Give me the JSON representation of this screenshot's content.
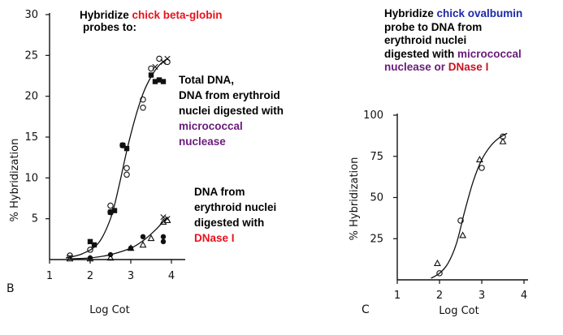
{
  "panels": [
    {
      "id": "B",
      "panel_label": "B",
      "annotations": {
        "title": {
          "line1_prefix": "Hybridize ",
          "line1_highlight": "chick beta-globin",
          "line2": "probes to:"
        },
        "total_dna": {
          "line1": "Total DNA,",
          "line2": "DNA from erythroid",
          "line3": "nuclei digested with",
          "line4": "micrococcal",
          "line5": "nuclease"
        },
        "dnase_dna": {
          "line1": "DNA from",
          "line2": "erythroid nuclei",
          "line3": "digested with",
          "line4": "DNase I"
        }
      }
    },
    {
      "id": "C",
      "panel_label": "C",
      "annotations": {
        "title": {
          "line1_prefix": "Hybridize ",
          "line1_highlight": "chick ovalbumin",
          "line2": "probe to DNA from",
          "line3": "erythroid nuclei",
          "line4_prefix": "digested with ",
          "line4_highlight": "micrococcal",
          "line5_prefix": "nuclease or ",
          "line5_highlight": "DNase I"
        }
      }
    }
  ],
  "colors": {
    "red_highlight": "#e8121c",
    "purple_highlight": "#6a1b7a",
    "blue_highlight": "#1e2aa8",
    "dark_red_highlight": "#c81020",
    "ink": "#111111"
  },
  "chart_data": [
    {
      "type": "scatter",
      "panel": "B",
      "xlabel": "Log Cot",
      "ylabel": "% Hybridization",
      "xlim": [
        1,
        4.2
      ],
      "ylim": [
        0,
        30
      ],
      "x_ticks": [
        1,
        2,
        3,
        4
      ],
      "x_tick_labels": [
        "1",
        "2",
        "3",
        "4"
      ],
      "y_ticks": [
        5,
        10,
        15,
        20,
        25,
        30
      ],
      "y_tick_labels": [
        "5",
        "10",
        "15",
        "20",
        "25",
        "30"
      ],
      "grid": false,
      "series": [
        {
          "marker": "filled-square",
          "points": [
            [
              2.0,
              2.2
            ],
            [
              2.1,
              1.8
            ],
            [
              2.5,
              5.8
            ],
            [
              2.6,
              6.0
            ],
            [
              2.8,
              14.0
            ],
            [
              2.9,
              13.6
            ],
            [
              3.5,
              22.6
            ],
            [
              3.6,
              21.8
            ],
            [
              3.7,
              22.0
            ],
            [
              3.8,
              21.8
            ]
          ]
        },
        {
          "marker": "open-circle",
          "points": [
            [
              1.5,
              0.5
            ],
            [
              2.0,
              1.2
            ],
            [
              2.5,
              5.8
            ],
            [
              2.5,
              6.6
            ],
            [
              2.8,
              14.0
            ],
            [
              2.9,
              11.2
            ],
            [
              2.9,
              10.4
            ],
            [
              3.3,
              19.6
            ],
            [
              3.3,
              18.6
            ],
            [
              3.5,
              23.4
            ],
            [
              3.7,
              24.6
            ],
            [
              3.9,
              24.2
            ]
          ]
        },
        {
          "marker": "open-cross",
          "points": [
            [
              1.5,
              0.3
            ],
            [
              3.6,
              23.6
            ],
            [
              3.8,
              24.2
            ],
            [
              3.9,
              24.6
            ]
          ]
        },
        {
          "marker": "filled-circle",
          "points": [
            [
              2.0,
              0.2
            ],
            [
              2.5,
              0.6
            ],
            [
              3.0,
              1.4
            ],
            [
              3.3,
              2.8
            ],
            [
              3.8,
              2.8
            ],
            [
              3.8,
              2.2
            ]
          ]
        },
        {
          "marker": "open-triangle",
          "points": [
            [
              1.5,
              0.1
            ],
            [
              2.0,
              0.1
            ],
            [
              2.5,
              0.2
            ],
            [
              3.0,
              1.4
            ],
            [
              3.3,
              1.8
            ],
            [
              3.5,
              2.6
            ],
            [
              3.8,
              4.6
            ],
            [
              3.9,
              4.8
            ]
          ]
        },
        {
          "marker": "open-cross",
          "points": [
            [
              3.8,
              5.2
            ],
            [
              3.9,
              5.0
            ]
          ]
        }
      ],
      "curves": [
        {
          "points": [
            [
              1.4,
              0.2
            ],
            [
              1.8,
              0.7
            ],
            [
              2.2,
              2.0
            ],
            [
              2.5,
              5.0
            ],
            [
              2.7,
              8.8
            ],
            [
              2.9,
              13.3
            ],
            [
              3.1,
              17.2
            ],
            [
              3.3,
              20.3
            ],
            [
              3.5,
              22.4
            ],
            [
              3.7,
              23.8
            ],
            [
              3.9,
              24.6
            ]
          ]
        },
        {
          "points": [
            [
              1.5,
              0.1
            ],
            [
              2.0,
              0.2
            ],
            [
              2.5,
              0.6
            ],
            [
              3.0,
              1.4
            ],
            [
              3.3,
              2.3
            ],
            [
              3.6,
              3.6
            ],
            [
              3.9,
              5.2
            ]
          ]
        }
      ]
    },
    {
      "type": "scatter",
      "panel": "C",
      "xlabel": "Log Cot",
      "ylabel": "% Hybridization",
      "xlim": [
        1,
        4.2
      ],
      "ylim": [
        0,
        100
      ],
      "x_ticks": [
        1,
        2,
        3,
        4
      ],
      "x_tick_labels": [
        "1",
        "2",
        "3",
        "4"
      ],
      "y_ticks": [
        25,
        50,
        75,
        100
      ],
      "y_tick_labels": [
        "25",
        "50",
        "75",
        "100"
      ],
      "grid": false,
      "series": [
        {
          "marker": "open-circle",
          "points": [
            [
              2.0,
              4
            ],
            [
              2.5,
              36
            ],
            [
              3.0,
              68
            ],
            [
              3.5,
              87
            ]
          ]
        },
        {
          "marker": "open-triangle",
          "points": [
            [
              1.95,
              10
            ],
            [
              2.55,
              27
            ],
            [
              2.95,
              73
            ],
            [
              3.5,
              84
            ]
          ]
        }
      ],
      "curves": [
        {
          "points": [
            [
              1.8,
              1
            ],
            [
              2.0,
              4
            ],
            [
              2.2,
              10
            ],
            [
              2.4,
              22
            ],
            [
              2.6,
              42
            ],
            [
              2.8,
              60
            ],
            [
              3.0,
              73
            ],
            [
              3.2,
              81
            ],
            [
              3.4,
              86
            ],
            [
              3.6,
              89
            ]
          ]
        }
      ]
    }
  ]
}
